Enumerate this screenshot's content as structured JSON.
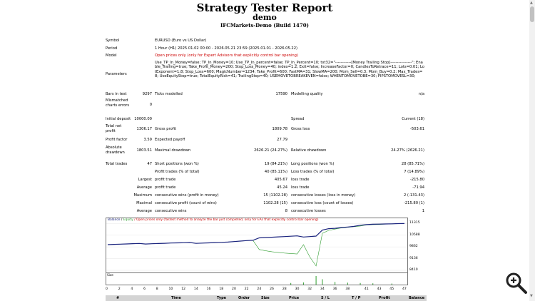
{
  "report": {
    "title": "Strategy Tester Report",
    "subtitle": "demo",
    "server": "IFCMarkets-Demo (Build 1470)"
  },
  "info": {
    "symbol_label": "Symbol",
    "symbol_value": "EURUSD (Euro vs US Dollar)",
    "period_label": "Period",
    "period_value": "1 Hour (H1) 2025.01.02 00:00 - 2026.05.21 23:59 (2025.01.01 - 2026.05.22)",
    "model_label": "Model",
    "model_value": "Open prices only (only for Expert Advisors that explicitly control bar opening)",
    "parameters_label": "Parameters",
    "parameters_value": "Use_TP_In_Money=false; TP_In_Money=10; Use_TP_In_percent=false; TP_In_Percent=10; txt32=\"------------[Money Trailing Stop]----------------\"; Enable_Trailing=true; Take_Profit_Money=200; Stop_Loss_Money=40; index=1.2; Exit=false; IncreaseFactor=0; CandlesToRetrace=11; Lots=0.01; LotExponent=1.8; Stop_Loss=600; MagicNumber=1234; Take_Profit=600; FastMA=31; SlowMA=200; Mom_Sell=0.3; Mom_Buy=0.2; Max_Trades=8; UseEquityStop=true; TotalEquityRisk=41; TrailingStop=40; USEMOVETOBREAKEVEN=false; WHENTOMOVETOBE=30; PIPSTOMOVESL=30;"
  },
  "stats": {
    "bars_label": "Bars in test",
    "bars_value": "9297",
    "ticks_label": "Ticks modelled",
    "ticks_value": "17590",
    "quality_label": "Modelling quality",
    "quality_value": "n/a",
    "mismatched_label_1": "Mismatched",
    "mismatched_label_2": "charts errors",
    "mismatched_value": "0",
    "deposit_label": "Initial deposit",
    "deposit_value": "10000.00",
    "spread_label": "Spread",
    "spread_value": "Current (18)",
    "netprofit_label_1": "Total net",
    "netprofit_label_2": "profit",
    "netprofit_value": "1306.17",
    "grossprofit_label": "Gross profit",
    "grossprofit_value": "1809.78",
    "grossloss_label": "Gross loss",
    "grossloss_value": "-503.61",
    "pf_label": "Profit factor",
    "pf_value": "3.59",
    "payoff_label": "Expected payoff",
    "payoff_value": "27.79",
    "absdd_label_1": "Absolute",
    "absdd_label_2": "drawdown",
    "absdd_value": "1803.51",
    "maxdd_label": "Maximal drawdown",
    "maxdd_value": "2626.21 (24.27%)",
    "reldd_label": "Relative drawdown",
    "reldd_value": "24.27% (2626.21)",
    "trades_label": "Total trades",
    "trades_value": "47",
    "short_label": "Short positions (won %)",
    "short_value": "19 (84.21%)",
    "long_label": "Long positions (won %)",
    "long_value": "28 (85.71%)",
    "ptrades_label": "Profit trades (% of total)",
    "ptrades_value": "40 (85.11%)",
    "ltrades_label": "Loss trades (% of total)",
    "ltrades_value": "7 (14.89%)",
    "largest_label": "Largest",
    "largest_profit_label": "profit trade",
    "largest_profit_value": "405.67",
    "largest_loss_label": "loss trade",
    "largest_loss_value": "-215.80",
    "average_label": "Average",
    "average_profit_label": "profit trade",
    "average_profit_value": "45.24",
    "average_loss_label": "loss trade",
    "average_loss_value": "-71.94",
    "maximum_label": "Maximum",
    "maxwins_label": "consecutive wins (profit in money)",
    "maxwins_value": "15 (1102.28)",
    "maxlosses_label": "consecutive losses (loss in money)",
    "maxlosses_value": "2 (-131.43)",
    "maximal_label": "Maximal",
    "maxprofit_label": "consecutive profit (count of wins)",
    "maxprofit_value": "1102.28 (15)",
    "maxloss_label": "consecutive loss (count of losses)",
    "maxloss_value": "-215.80 (1)",
    "avgcons_label": "Average",
    "avgwins_label": "consecutive wins",
    "avgwins_value": "8",
    "avglosses_label": "consecutive losses",
    "avglosses_value": "1"
  },
  "chart_legend": {
    "balance": "Balance",
    "sep": " / ",
    "equity": "Equity",
    "note": " / Open prices only (fastest method to analyze the bar just completed, only for EAs that explicitly control bar opening)"
  },
  "chart_data": {
    "type": "line",
    "y_ticks": [
      "11315",
      "10588",
      "9862",
      "9136",
      "8410"
    ],
    "ylim": [
      8410,
      11500
    ],
    "x_ticks": [
      "0",
      "2",
      "4",
      "6",
      "8",
      "10",
      "12",
      "14",
      "16",
      "18",
      "20",
      "22",
      "24",
      "26",
      "28",
      "30",
      "32",
      "34",
      "36",
      "38",
      "41",
      "43",
      "45",
      "47"
    ],
    "size_label": "Size",
    "series": [
      {
        "name": "Balance",
        "color": "#1a237e",
        "x": [
          0,
          1,
          2,
          3,
          4,
          5,
          6,
          7,
          8,
          9,
          10,
          11,
          12,
          13,
          14,
          15,
          16,
          17,
          18,
          19,
          20,
          21,
          22,
          23,
          24,
          25,
          26,
          27,
          28,
          29,
          30,
          31,
          32,
          33,
          34,
          35,
          36,
          37,
          38,
          39,
          40,
          41,
          42,
          43,
          44,
          45,
          46,
          47
        ],
        "y": [
          10000,
          10015,
          10030,
          10045,
          10060,
          10075,
          10040,
          10055,
          10070,
          10085,
          10100,
          10110,
          10120,
          10130,
          10080,
          10095,
          10110,
          10125,
          10140,
          10160,
          10190,
          10220,
          10250,
          10270,
          10420,
          10440,
          10460,
          10480,
          10500,
          10520,
          10540,
          10470,
          10500,
          10530,
          10900,
          10990,
          11010,
          11060,
          11090,
          11130,
          11200,
          11240,
          11260,
          11270,
          11280,
          11290,
          11300,
          11306
        ]
      },
      {
        "name": "Equity",
        "color": "#2e9d2e",
        "x": [
          0,
          1,
          2,
          3,
          4,
          5,
          6,
          7,
          8,
          9,
          10,
          11,
          12,
          13,
          14,
          15,
          16,
          17,
          18,
          19,
          20,
          21,
          22,
          23,
          24,
          25,
          26,
          27,
          28,
          29,
          30,
          31,
          32,
          33,
          34,
          35,
          36,
          37,
          38,
          39,
          40,
          41,
          42,
          43,
          44,
          45,
          46,
          47
        ],
        "y": [
          10000,
          10015,
          10030,
          10045,
          10060,
          10075,
          10040,
          10055,
          10070,
          10085,
          10100,
          10110,
          10120,
          10130,
          10080,
          10095,
          10110,
          10125,
          10140,
          10160,
          10190,
          10220,
          10250,
          10270,
          9700,
          9620,
          9560,
          9520,
          9480,
          9450,
          9420,
          10000,
          9250,
          8680,
          10700,
          10880,
          10960,
          11030,
          11070,
          11110,
          11150,
          11220,
          11240,
          11250,
          11270,
          11280,
          11300,
          11306
        ]
      }
    ],
    "size_bars": [
      {
        "x": 33,
        "h": 0.8
      },
      {
        "x": 34,
        "h": 0.5
      },
      {
        "x": 36,
        "h": 0.25
      },
      {
        "x": 31,
        "h": 0.2
      },
      {
        "x": 38,
        "h": 0.18
      },
      {
        "x": 40,
        "h": 0.15
      },
      {
        "x": 29,
        "h": 0.15
      },
      {
        "x": 42,
        "h": 0.12
      },
      {
        "x": 45,
        "h": 0.1
      }
    ]
  },
  "trade_table": {
    "headers": [
      "#",
      "Time",
      "Type",
      "Order",
      "Size",
      "Price",
      "S / L",
      "T / P",
      "Profit",
      "Balance"
    ]
  }
}
